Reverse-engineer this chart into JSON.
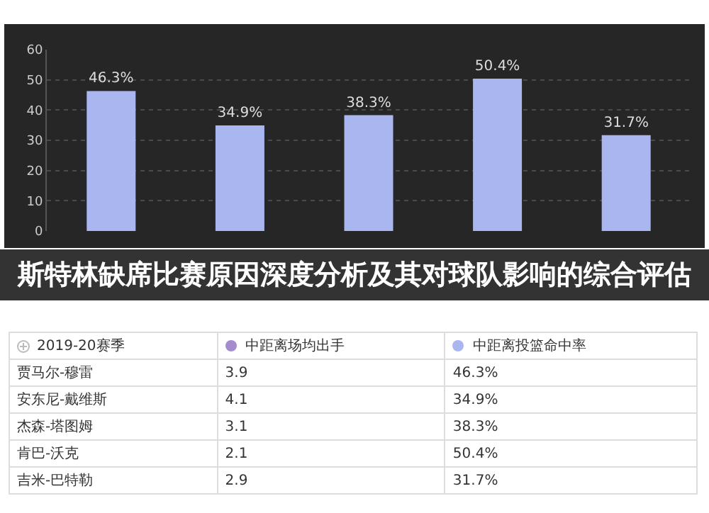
{
  "chart_data": [
    {
      "type": "bar",
      "title": "斯特林缺席比赛原因深度分析及其对球队影响的综合评估",
      "categories": [
        null,
        null,
        null,
        null,
        null
      ],
      "values": [
        46.3,
        34.9,
        38.3,
        50.4,
        31.7
      ],
      "value_labels": [
        "46.3%",
        "34.9%",
        "38.3%",
        "50.4%",
        "31.7%"
      ],
      "color": "#aab6f0",
      "ylim": [
        0,
        60
      ],
      "yticks": [
        0,
        10,
        20,
        30,
        40,
        50,
        60
      ],
      "grid": true,
      "tick_labels": "y",
      "legend": false
    },
    {
      "type": "other",
      "legend_title": "2019-20赛季",
      "categories": [
        "贾马尔-穆雷",
        "安东尼-戴维斯",
        "杰森-塔图姆",
        "肯巴-沃克",
        "吉米-巴特勒"
      ],
      "series": [
        {
          "name": "中距离场均出手",
          "color": "#a58cd0",
          "values": [
            3.9,
            4.1,
            3.1,
            2.1,
            2.9
          ]
        },
        {
          "name": "中距离投篮命中率",
          "color": "#aab6f0",
          "values": [
            46.3,
            34.9,
            38.3,
            50.4,
            31.7
          ],
          "value_labels": [
            "46.3%",
            "34.9%",
            "38.3%",
            "50.4%",
            "31.7%"
          ]
        }
      ],
      "data_labels": true
    }
  ]
}
